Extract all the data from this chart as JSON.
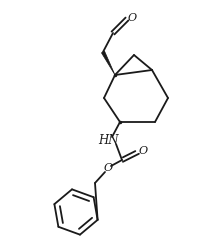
{
  "bg_color": "#ffffff",
  "line_color": "#1a1a1a",
  "line_width": 1.3,
  "fig_width": 2.04,
  "fig_height": 2.38,
  "dpi": 100,
  "xlim": [
    0,
    204
  ],
  "ylim": [
    0,
    238
  ]
}
